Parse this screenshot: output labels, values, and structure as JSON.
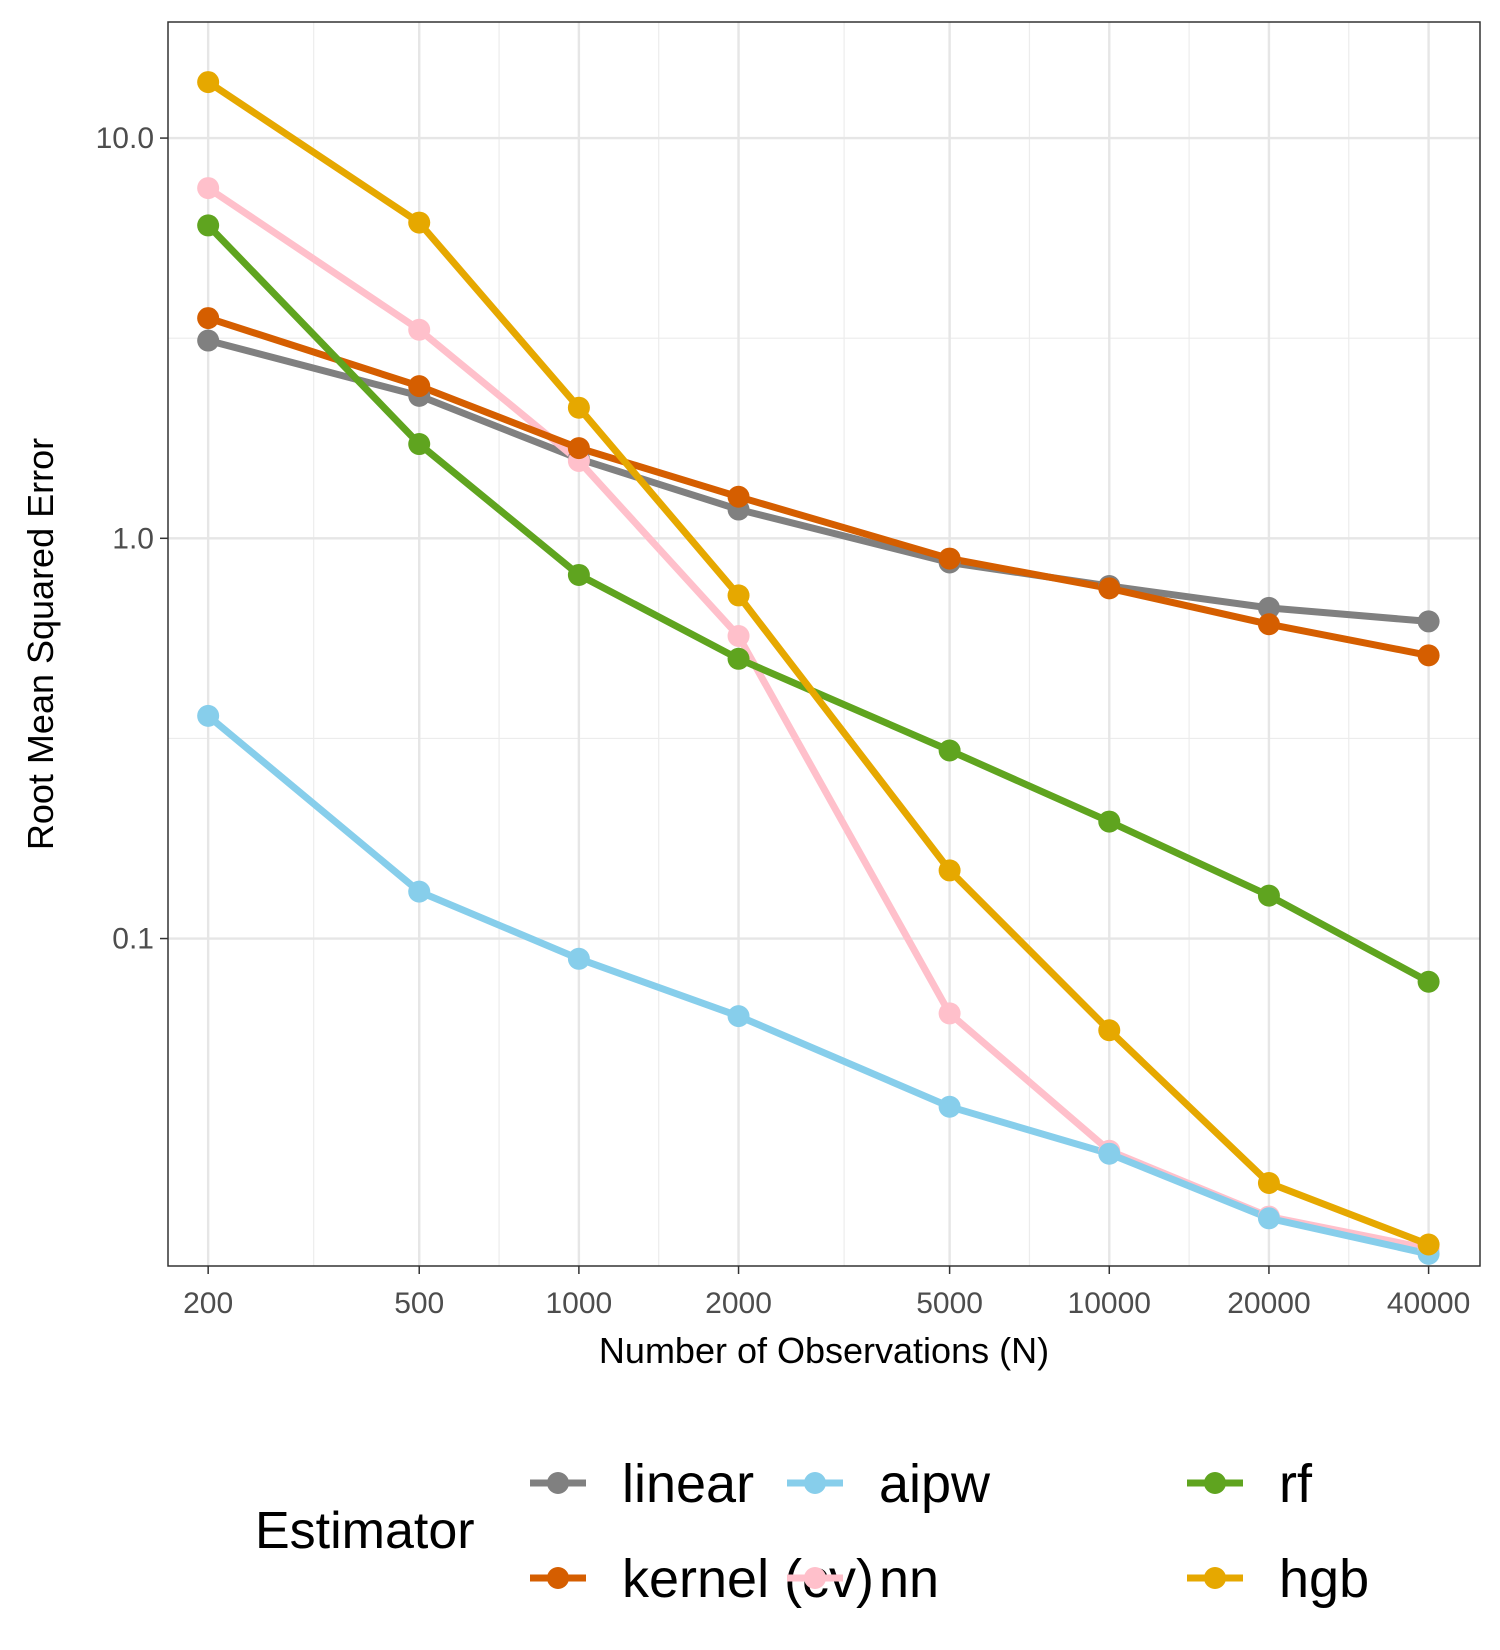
{
  "chart_data": {
    "type": "line",
    "title": "",
    "xlabel": "Number of Observations (N)",
    "ylabel": "Root Mean Squared Error",
    "x_scale": "log",
    "y_scale": "log",
    "x": [
      200,
      500,
      1000,
      2000,
      5000,
      10000,
      20000,
      40000
    ],
    "xticks": [
      "200",
      "500",
      "1000",
      "2000",
      "5000",
      "10000",
      "20000",
      "40000"
    ],
    "yticks": [
      "10.0",
      "1.0",
      "0.1"
    ],
    "ytick_values": [
      10,
      1,
      0.1
    ],
    "xlim": [
      168,
      50000
    ],
    "ylim": [
      0.0152,
      19.5
    ],
    "grid": true,
    "legend_title": "Estimator",
    "legend_position": "bottom",
    "series": [
      {
        "name": "linear",
        "color": "#808080",
        "values": [
          3.12,
          2.27,
          1.58,
          1.18,
          0.87,
          0.76,
          0.67,
          0.62
        ]
      },
      {
        "name": "kernel (cv)",
        "color": "#D55E00",
        "values": [
          3.55,
          2.4,
          1.68,
          1.27,
          0.89,
          0.75,
          0.61,
          0.51
        ]
      },
      {
        "name": "aipw",
        "color": "#87CEEB",
        "values": [
          0.36,
          0.131,
          0.089,
          0.064,
          0.038,
          0.029,
          0.02,
          0.0163
        ]
      },
      {
        "name": "nn",
        "color": "#FFC0CB",
        "values": [
          7.5,
          3.32,
          1.56,
          0.57,
          0.065,
          0.0295,
          0.0202,
          0.0168
        ]
      },
      {
        "name": "rf",
        "color": "#5FA41F",
        "values": [
          6.05,
          1.72,
          0.81,
          0.5,
          0.295,
          0.196,
          0.128,
          0.078
        ]
      },
      {
        "name": "hgb",
        "color": "#E6A800",
        "values": [
          13.8,
          6.15,
          2.12,
          0.72,
          0.148,
          0.059,
          0.0245,
          0.0172
        ]
      }
    ]
  }
}
